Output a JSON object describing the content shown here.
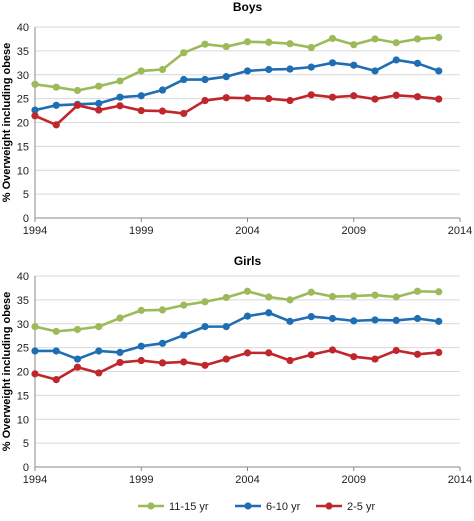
{
  "chart_data": [
    {
      "type": "line",
      "title": "Boys",
      "ylabel": "% Overweight including obese",
      "xlabel": "",
      "xlim": [
        1994,
        2014
      ],
      "ylim": [
        0,
        40
      ],
      "x_ticks": [
        "1994",
        "1999",
        "2004",
        "2009",
        "2014"
      ],
      "y_ticks": [
        "0",
        "5",
        "10",
        "15",
        "20",
        "25",
        "30",
        "35",
        "40"
      ],
      "x": [
        1994,
        1995,
        1996,
        1997,
        1998,
        1999,
        2000,
        2001,
        2002,
        2003,
        2004,
        2005,
        2006,
        2007,
        2008,
        2009,
        2010,
        2011,
        2012,
        2013
      ],
      "series": [
        {
          "name": "11-15 yr",
          "color": "#9bbb59",
          "values": [
            28.0,
            27.4,
            26.7,
            27.6,
            28.7,
            30.8,
            31.1,
            34.6,
            36.4,
            35.9,
            36.9,
            36.8,
            36.5,
            35.7,
            37.6,
            36.3,
            37.5,
            36.7,
            37.5,
            37.8
          ]
        },
        {
          "name": "6-10 yr",
          "color": "#1f6eb4",
          "values": [
            22.6,
            23.6,
            23.8,
            24.0,
            25.3,
            25.6,
            26.8,
            29.0,
            29.0,
            29.6,
            30.8,
            31.1,
            31.2,
            31.6,
            32.5,
            32.0,
            30.8,
            33.1,
            32.4,
            30.8
          ]
        },
        {
          "name": "2-5 yr",
          "color": "#c0272d",
          "values": [
            21.4,
            19.5,
            23.6,
            22.6,
            23.5,
            22.5,
            22.4,
            21.9,
            24.6,
            25.2,
            25.1,
            25.0,
            24.6,
            25.8,
            25.3,
            25.6,
            24.9,
            25.7,
            25.4,
            24.9
          ]
        }
      ]
    },
    {
      "type": "line",
      "title": "Girls",
      "ylabel": "% Overweight including obese",
      "xlabel": "",
      "xlim": [
        1994,
        2014
      ],
      "ylim": [
        0,
        40
      ],
      "x_ticks": [
        "1994",
        "1999",
        "2004",
        "2009",
        "2014"
      ],
      "y_ticks": [
        "0",
        "5",
        "10",
        "15",
        "20",
        "25",
        "30",
        "35",
        "40"
      ],
      "x": [
        1994,
        1995,
        1996,
        1997,
        1998,
        1999,
        2000,
        2001,
        2002,
        2003,
        2004,
        2005,
        2006,
        2007,
        2008,
        2009,
        2010,
        2011,
        2012,
        2013
      ],
      "series": [
        {
          "name": "11-15 yr",
          "color": "#9bbb59",
          "values": [
            29.4,
            28.4,
            28.8,
            29.4,
            31.2,
            32.8,
            32.9,
            33.9,
            34.6,
            35.5,
            36.8,
            35.6,
            35.0,
            36.6,
            35.7,
            35.8,
            36.0,
            35.6,
            36.8,
            36.7
          ]
        },
        {
          "name": "6-10 yr",
          "color": "#1f6eb4",
          "values": [
            24.3,
            24.3,
            22.6,
            24.3,
            24.0,
            25.3,
            25.9,
            27.6,
            29.4,
            29.4,
            31.6,
            32.3,
            30.5,
            31.5,
            31.1,
            30.6,
            30.8,
            30.7,
            31.1,
            30.5
          ]
        },
        {
          "name": "2-5 yr",
          "color": "#c0272d",
          "values": [
            19.5,
            18.3,
            20.9,
            19.7,
            21.9,
            22.3,
            21.8,
            22.0,
            21.3,
            22.6,
            23.9,
            23.9,
            22.3,
            23.5,
            24.5,
            23.1,
            22.6,
            24.4,
            23.6,
            24.0
          ]
        }
      ]
    }
  ],
  "legend": {
    "position": "bottom",
    "items": [
      {
        "label": "11-15 yr",
        "color": "#9bbb59"
      },
      {
        "label": "6-10 yr",
        "color": "#1f6eb4"
      },
      {
        "label": "2-5 yr",
        "color": "#c0272d"
      }
    ]
  }
}
